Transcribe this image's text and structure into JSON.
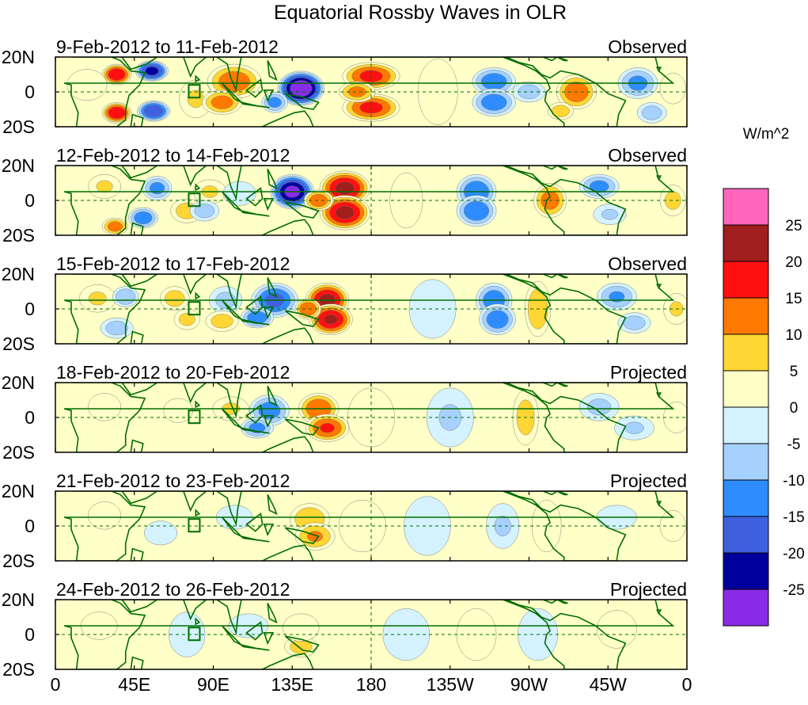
{
  "chart_data": {
    "type": "heatmap",
    "title": "Equatorial Rossby Waves in OLR",
    "variable": "OLR",
    "units": "W/m^2",
    "x_domain": "longitude 0 to 360",
    "y_domain": "latitude 20S to 20N",
    "xticks": [
      {
        "lon": 0,
        "label": "0"
      },
      {
        "lon": 45,
        "label": "45E"
      },
      {
        "lon": 90,
        "label": "90E"
      },
      {
        "lon": 135,
        "label": "135E"
      },
      {
        "lon": 180,
        "label": "180"
      },
      {
        "lon": 225,
        "label": "135W"
      },
      {
        "lon": 270,
        "label": "90W"
      },
      {
        "lon": 315,
        "label": "45W"
      },
      {
        "lon": 360,
        "label": "0"
      }
    ],
    "yticks": [
      {
        "lat": 20,
        "label": "20N"
      },
      {
        "lat": 0,
        "label": "0"
      },
      {
        "lat": -20,
        "label": "20S"
      }
    ],
    "colorbar": {
      "label": "W/m^2",
      "levels": [
        "25",
        "20",
        "15",
        "10",
        "5",
        "0",
        "-5",
        "-10",
        "-15",
        "-20",
        "-25"
      ],
      "colors": [
        "#ff66bb",
        "#a01e1e",
        "#ff1010",
        "#ff7800",
        "#ffd633",
        "#ffffc8",
        "#d4f2ff",
        "#a6d1ff",
        "#2e8cff",
        "#3f61e0",
        "#00009c",
        "#8a2be8"
      ]
    },
    "colors": {
      "coast": "#006e00",
      "frame": "#000000",
      "box": "#006e00"
    },
    "panels": [
      {
        "date": "9-Feb-2012 to 11-Feb-2012",
        "status": "Observed",
        "features": [
          {
            "lon": 35,
            "lat": 10,
            "w": 7,
            "h": 5,
            "v": 20
          },
          {
            "lon": 35,
            "lat": -12,
            "w": 7,
            "h": 5,
            "v": 20
          },
          {
            "lon": 55,
            "lat": 12,
            "w": 8,
            "h": 5,
            "v": -22
          },
          {
            "lon": 56,
            "lat": -11,
            "w": 8,
            "h": 5,
            "v": -20
          },
          {
            "lon": 18,
            "lat": 4,
            "w": 10,
            "h": 8,
            "v": 4
          },
          {
            "lon": 80,
            "lat": -4,
            "w": 8,
            "h": 10,
            "v": 6
          },
          {
            "lon": 102,
            "lat": 6,
            "w": 14,
            "h": 9,
            "v": 14
          },
          {
            "lon": 95,
            "lat": -6,
            "w": 10,
            "h": 6,
            "v": 13
          },
          {
            "lon": 140,
            "lat": 2,
            "w": 12,
            "h": 9,
            "v": -30
          },
          {
            "lon": 125,
            "lat": -6,
            "w": 6,
            "h": 5,
            "v": -12
          },
          {
            "lon": 180,
            "lat": 9,
            "w": 15,
            "h": 7,
            "v": 17
          },
          {
            "lon": 180,
            "lat": -9,
            "w": 15,
            "h": 7,
            "v": 17
          },
          {
            "lon": 172,
            "lat": 0,
            "w": 9,
            "h": 5,
            "v": 12
          },
          {
            "lon": 218,
            "lat": 0,
            "w": 10,
            "h": 18,
            "v": 3
          },
          {
            "lon": 250,
            "lat": 6,
            "w": 11,
            "h": 7,
            "v": -14
          },
          {
            "lon": 250,
            "lat": -6,
            "w": 11,
            "h": 7,
            "v": -14
          },
          {
            "lon": 270,
            "lat": 0,
            "w": 8,
            "h": 5,
            "v": -8
          },
          {
            "lon": 297,
            "lat": 0,
            "w": 10,
            "h": 9,
            "v": 14
          },
          {
            "lon": 288,
            "lat": -11,
            "w": 6,
            "h": 4,
            "v": 8
          },
          {
            "lon": 332,
            "lat": 5,
            "w": 10,
            "h": 8,
            "v": -12
          },
          {
            "lon": 340,
            "lat": -12,
            "w": 7,
            "h": 5,
            "v": -8
          },
          {
            "lon": 352,
            "lat": 2,
            "w": 6,
            "h": 8,
            "v": 5
          }
        ]
      },
      {
        "date": "12-Feb-2012 to 14-Feb-2012",
        "status": "Observed",
        "features": [
          {
            "lon": 28,
            "lat": 8,
            "w": 8,
            "h": 6,
            "v": 6
          },
          {
            "lon": 34,
            "lat": -15,
            "w": 6,
            "h": 4,
            "v": 13
          },
          {
            "lon": 58,
            "lat": 7,
            "w": 7,
            "h": 6,
            "v": -12
          },
          {
            "lon": 50,
            "lat": -10,
            "w": 7,
            "h": 5,
            "v": -14
          },
          {
            "lon": 75,
            "lat": -6,
            "w": 8,
            "h": 6,
            "v": 8
          },
          {
            "lon": 88,
            "lat": 5,
            "w": 8,
            "h": 6,
            "v": 6
          },
          {
            "lon": 85,
            "lat": -6,
            "w": 7,
            "h": 5,
            "v": -8
          },
          {
            "lon": 105,
            "lat": 4,
            "w": 8,
            "h": 6,
            "v": -4
          },
          {
            "lon": 135,
            "lat": 5,
            "w": 11,
            "h": 9,
            "v": -27
          },
          {
            "lon": 165,
            "lat": 7,
            "w": 13,
            "h": 9,
            "v": 22
          },
          {
            "lon": 165,
            "lat": -7,
            "w": 13,
            "h": 9,
            "v": 22
          },
          {
            "lon": 150,
            "lat": 0,
            "w": 7,
            "h": 5,
            "v": 14
          },
          {
            "lon": 200,
            "lat": 0,
            "w": 8,
            "h": 15,
            "v": 4
          },
          {
            "lon": 240,
            "lat": 5,
            "w": 10,
            "h": 9,
            "v": -15
          },
          {
            "lon": 240,
            "lat": -6,
            "w": 10,
            "h": 8,
            "v": -15
          },
          {
            "lon": 282,
            "lat": 0,
            "w": 8,
            "h": 9,
            "v": 13
          },
          {
            "lon": 310,
            "lat": 8,
            "w": 10,
            "h": 6,
            "v": -12
          },
          {
            "lon": 316,
            "lat": -8,
            "w": 8,
            "h": 5,
            "v": -6
          },
          {
            "lon": 352,
            "lat": 0,
            "w": 6,
            "h": 8,
            "v": 7
          }
        ]
      },
      {
        "date": "15-Feb-2012 to 17-Feb-2012",
        "status": "Observed",
        "features": [
          {
            "lon": 24,
            "lat": 6,
            "w": 9,
            "h": 7,
            "v": 6
          },
          {
            "lon": 35,
            "lat": -11,
            "w": 8,
            "h": 5,
            "v": -8
          },
          {
            "lon": 40,
            "lat": 7,
            "w": 6,
            "h": 5,
            "v": -10
          },
          {
            "lon": 68,
            "lat": 6,
            "w": 7,
            "h": 6,
            "v": 8
          },
          {
            "lon": 75,
            "lat": -6,
            "w": 6,
            "h": 5,
            "v": 7
          },
          {
            "lon": 97,
            "lat": 5,
            "w": 8,
            "h": 7,
            "v": -7
          },
          {
            "lon": 95,
            "lat": -7,
            "w": 8,
            "h": 5,
            "v": 8
          },
          {
            "lon": 125,
            "lat": 5,
            "w": 12,
            "h": 9,
            "v": -17
          },
          {
            "lon": 115,
            "lat": -5,
            "w": 8,
            "h": 5,
            "v": -14
          },
          {
            "lon": 155,
            "lat": 5,
            "w": 11,
            "h": 9,
            "v": 22
          },
          {
            "lon": 157,
            "lat": -6,
            "w": 11,
            "h": 8,
            "v": 21
          },
          {
            "lon": 144,
            "lat": 0,
            "w": 6,
            "h": 5,
            "v": 15
          },
          {
            "lon": 215,
            "lat": 0,
            "w": 12,
            "h": 16,
            "v": -3
          },
          {
            "lon": 250,
            "lat": 5,
            "w": 9,
            "h": 9,
            "v": -14
          },
          {
            "lon": 252,
            "lat": -6,
            "w": 9,
            "h": 8,
            "v": -14
          },
          {
            "lon": 275,
            "lat": 0,
            "w": 6,
            "h": 15,
            "v": 10
          },
          {
            "lon": 320,
            "lat": 7,
            "w": 10,
            "h": 7,
            "v": -11
          },
          {
            "lon": 330,
            "lat": -8,
            "w": 8,
            "h": 5,
            "v": -8
          },
          {
            "lon": 354,
            "lat": 0,
            "w": 6,
            "h": 8,
            "v": 6
          }
        ]
      },
      {
        "date": "18-Feb-2012 to 20-Feb-2012",
        "status": "Projected",
        "features": [
          {
            "lon": 28,
            "lat": 6,
            "w": 8,
            "h": 7,
            "v": 4
          },
          {
            "lon": 70,
            "lat": 4,
            "w": 7,
            "h": 6,
            "v": 5
          },
          {
            "lon": 100,
            "lat": 5,
            "w": 9,
            "h": 6,
            "v": 6
          },
          {
            "lon": 122,
            "lat": 4,
            "w": 10,
            "h": 8,
            "v": -13
          },
          {
            "lon": 115,
            "lat": -6,
            "w": 8,
            "h": 5,
            "v": -12
          },
          {
            "lon": 150,
            "lat": 5,
            "w": 10,
            "h": 8,
            "v": 15
          },
          {
            "lon": 155,
            "lat": -6,
            "w": 11,
            "h": 7,
            "v": 16
          },
          {
            "lon": 180,
            "lat": 0,
            "w": 12,
            "h": 16,
            "v": 2
          },
          {
            "lon": 225,
            "lat": 0,
            "w": 12,
            "h": 16,
            "v": -6
          },
          {
            "lon": 268,
            "lat": 0,
            "w": 6,
            "h": 15,
            "v": 8
          },
          {
            "lon": 310,
            "lat": 6,
            "w": 10,
            "h": 7,
            "v": -7
          },
          {
            "lon": 330,
            "lat": -6,
            "w": 10,
            "h": 6,
            "v": -6
          },
          {
            "lon": 354,
            "lat": 0,
            "w": 6,
            "h": 8,
            "v": 4
          }
        ]
      },
      {
        "date": "21-Feb-2012 to 23-Feb-2012",
        "status": "Projected",
        "features": [
          {
            "lon": 28,
            "lat": 6,
            "w": 8,
            "h": 7,
            "v": 3
          },
          {
            "lon": 60,
            "lat": -4,
            "w": 8,
            "h": 6,
            "v": -3
          },
          {
            "lon": 102,
            "lat": 5,
            "w": 9,
            "h": 6,
            "v": -4
          },
          {
            "lon": 145,
            "lat": 4,
            "w": 10,
            "h": 8,
            "v": 10
          },
          {
            "lon": 148,
            "lat": -6,
            "w": 10,
            "h": 7,
            "v": 11
          },
          {
            "lon": 175,
            "lat": 0,
            "w": 12,
            "h": 14,
            "v": 3
          },
          {
            "lon": 212,
            "lat": 0,
            "w": 12,
            "h": 16,
            "v": -5
          },
          {
            "lon": 255,
            "lat": 0,
            "w": 8,
            "h": 12,
            "v": -6
          },
          {
            "lon": 280,
            "lat": 0,
            "w": 7,
            "h": 14,
            "v": 3
          },
          {
            "lon": 320,
            "lat": 5,
            "w": 10,
            "h": 6,
            "v": -5
          },
          {
            "lon": 352,
            "lat": 0,
            "w": 6,
            "h": 8,
            "v": 3
          }
        ]
      },
      {
        "date": "24-Feb-2012 to 26-Feb-2012",
        "status": "Projected",
        "features": [
          {
            "lon": 25,
            "lat": 5,
            "w": 9,
            "h": 7,
            "v": 3
          },
          {
            "lon": 75,
            "lat": 0,
            "w": 9,
            "h": 12,
            "v": -3
          },
          {
            "lon": 110,
            "lat": 5,
            "w": 10,
            "h": 6,
            "v": -3
          },
          {
            "lon": 140,
            "lat": -7,
            "w": 8,
            "h": 5,
            "v": 8
          },
          {
            "lon": 140,
            "lat": 4,
            "w": 9,
            "h": 7,
            "v": 5
          },
          {
            "lon": 200,
            "lat": 0,
            "w": 12,
            "h": 14,
            "v": -4
          },
          {
            "lon": 240,
            "lat": 0,
            "w": 10,
            "h": 14,
            "v": 2
          },
          {
            "lon": 275,
            "lat": 0,
            "w": 10,
            "h": 14,
            "v": -4
          },
          {
            "lon": 320,
            "lat": 3,
            "w": 10,
            "h": 10,
            "v": 2
          }
        ]
      }
    ]
  }
}
